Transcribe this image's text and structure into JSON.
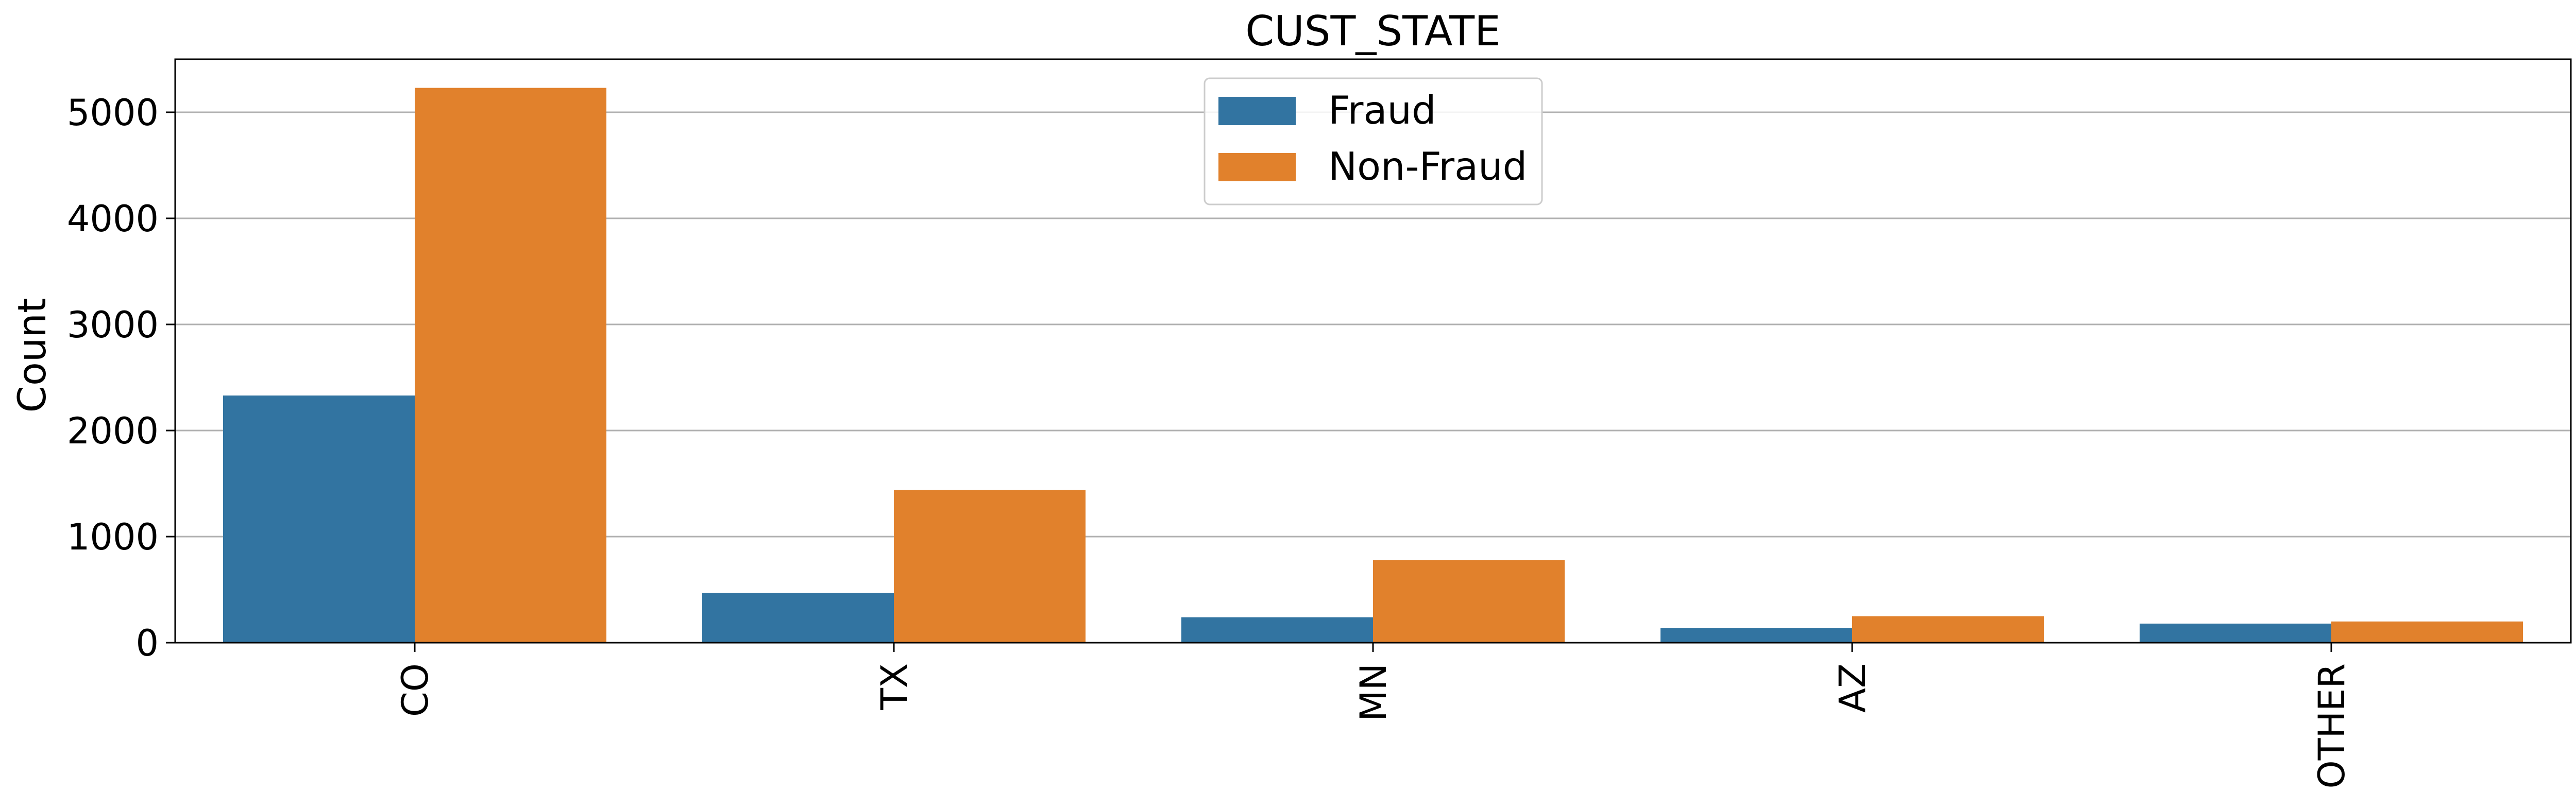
{
  "colors": {
    "fraud": "#3274a1",
    "non_fraud": "#e1812c",
    "grid": "#b0b0b0",
    "axis": "#000000"
  },
  "chart_data": {
    "type": "bar",
    "title": "CUST_STATE",
    "xlabel": "",
    "ylabel": "Count",
    "ylim": [
      0,
      5500
    ],
    "yticks": [
      0,
      1000,
      2000,
      3000,
      4000,
      5000
    ],
    "grid": "y",
    "legend_position": "top-center",
    "categories": [
      "CO",
      "TX",
      "MN",
      "AZ",
      "OTHER"
    ],
    "series": [
      {
        "name": "Fraud",
        "values": [
          2330,
          470,
          240,
          140,
          180
        ]
      },
      {
        "name": "Non-Fraud",
        "values": [
          5230,
          1440,
          780,
          250,
          200
        ]
      }
    ]
  }
}
